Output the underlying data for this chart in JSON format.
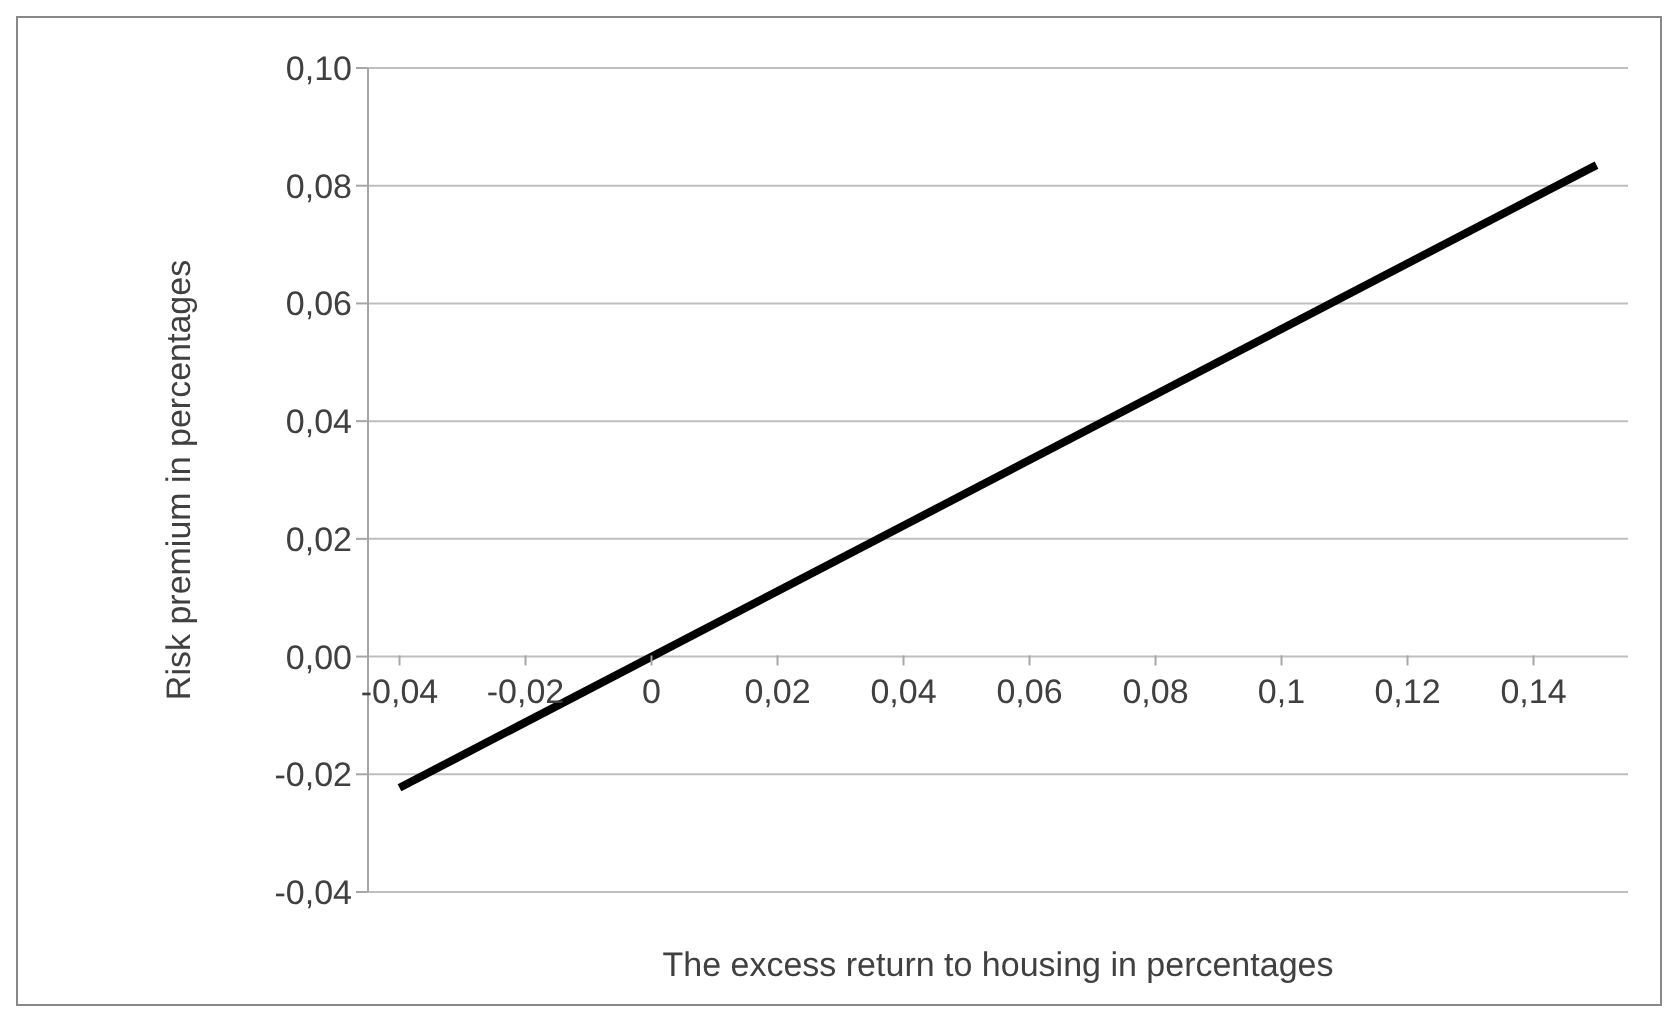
{
  "chart_data": {
    "type": "line",
    "xlabel": "The excess return to housing in percentages",
    "ylabel": "Risk premium in percentages",
    "x": [
      -0.04,
      0.15
    ],
    "series": [
      {
        "color": "#000000",
        "values": [
          -0.0223,
          0.0835
        ]
      }
    ],
    "xlim": [
      -0.045,
      0.155
    ],
    "xticks": [
      {
        "value": -0.04,
        "label": "-0,04"
      },
      {
        "value": -0.02,
        "label": "-0,02"
      },
      {
        "value": 0,
        "label": "0"
      },
      {
        "value": 0.02,
        "label": "0,02"
      },
      {
        "value": 0.04,
        "label": "0,04"
      },
      {
        "value": 0.06,
        "label": "0,06"
      },
      {
        "value": 0.08,
        "label": "0,08"
      },
      {
        "value": 0.1,
        "label": "0,1"
      },
      {
        "value": 0.12,
        "label": "0,12"
      },
      {
        "value": 0.14,
        "label": "0,14"
      }
    ],
    "ylim": [
      -0.04,
      0.1
    ],
    "yticks": [
      {
        "value": -0.04,
        "label": "-0,04"
      },
      {
        "value": -0.02,
        "label": "-0,02"
      },
      {
        "value": 0,
        "label": "0,00"
      },
      {
        "value": 0.02,
        "label": "0,02"
      },
      {
        "value": 0.04,
        "label": "0,04"
      },
      {
        "value": 0.06,
        "label": "0,06"
      },
      {
        "value": 0.08,
        "label": "0,08"
      },
      {
        "value": 0.1,
        "label": "0,10"
      }
    ],
    "grid": "y",
    "legend": false,
    "marker": "none",
    "line_style": "solid"
  }
}
